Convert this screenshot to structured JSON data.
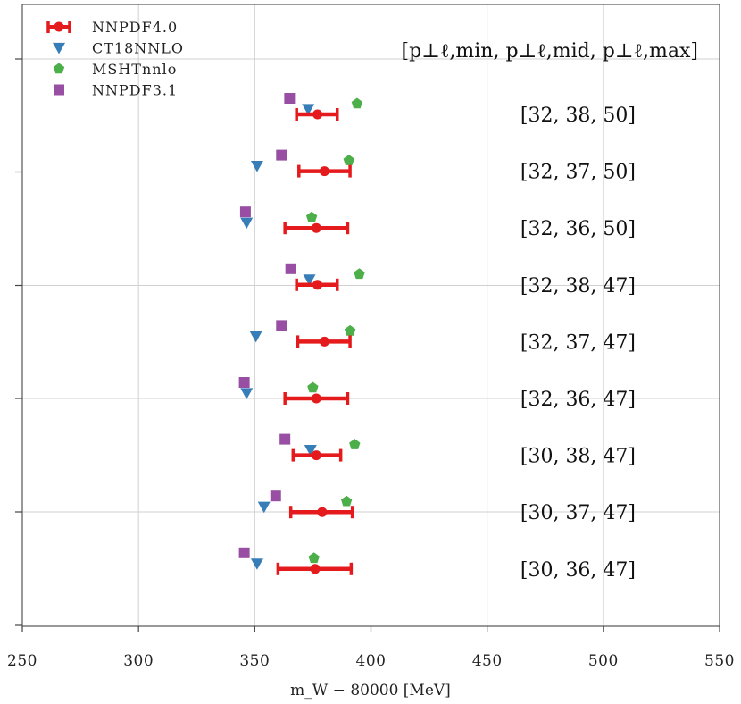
{
  "chart_data": {
    "type": "scatter",
    "xlabel": "m_W − 80000 [MeV]",
    "xlim": [
      250,
      550
    ],
    "x_ticks": [
      250,
      300,
      350,
      400,
      450,
      500,
      550
    ],
    "grid": true,
    "legend_position": "top-left",
    "column_header": "[p⊥ℓ,min, p⊥ℓ,mid, p⊥ℓ,max]",
    "rows": [
      "[32, 38, 50]",
      "[32, 37, 50]",
      "[32, 36, 50]",
      "[32, 38, 47]",
      "[32, 37, 47]",
      "[32, 36, 47]",
      "[30, 38, 47]",
      "[30, 37, 47]",
      "[30, 36, 47]"
    ],
    "series": [
      {
        "name": "NNPDF4.0",
        "marker": "circle-errorbar",
        "color": "#e41a1c",
        "values": [
          377,
          380,
          376.5,
          377,
          380,
          376.5,
          376.5,
          379,
          376
        ],
        "err_low": [
          9,
          11,
          13.5,
          9,
          11.5,
          13.5,
          10,
          13.5,
          16
        ],
        "err_high": [
          8.5,
          11,
          13.5,
          8.5,
          11,
          13.5,
          10.5,
          13,
          15.5
        ]
      },
      {
        "name": "CT18NNLO",
        "marker": "triangle-down",
        "color": "#377eb8",
        "values": [
          373,
          351,
          346.5,
          373.5,
          350.5,
          346.5,
          374,
          354,
          351
        ]
      },
      {
        "name": "MSHTnnlo",
        "marker": "pentagon",
        "color": "#4daf4a",
        "values": [
          394,
          390.5,
          374.5,
          395,
          391,
          375,
          393,
          389.5,
          375.5
        ]
      },
      {
        "name": "NNPDF3.1",
        "marker": "square",
        "color": "#984ea3",
        "values": [
          365,
          361.5,
          346,
          365.5,
          361.5,
          345.5,
          363,
          359,
          345.5
        ]
      }
    ]
  }
}
